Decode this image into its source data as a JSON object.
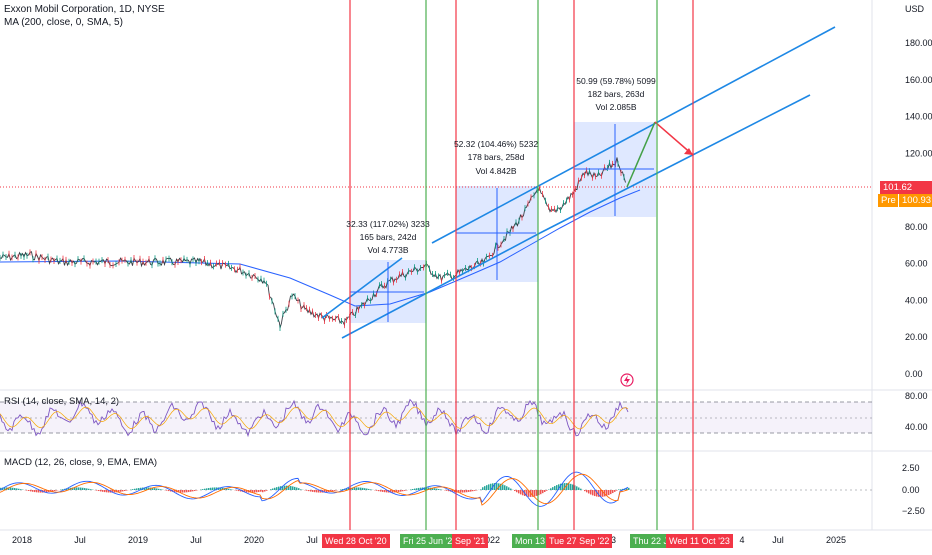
{
  "chart_data": {
    "type": "line",
    "title": "Exxon Mobil Corporation, 1D, NYSE",
    "indicator_ma": "MA (200, close, 0, SMA, 5)",
    "indicator_rsi": "RSI (14, close, SMA, 14, 2)",
    "indicator_macd": "MACD (12, 26, close, 9, EMA, EMA)",
    "currency": "USD",
    "price_axis": {
      "ylim": [
        0,
        190
      ],
      "ticks": [
        "180.00",
        "160.00",
        "140.00",
        "120.00",
        "100.00",
        "80.00",
        "60.00",
        "40.00",
        "20.00",
        "0.00"
      ],
      "tick_values": [
        180,
        160,
        140,
        120,
        100,
        80,
        60,
        40,
        20,
        0
      ]
    },
    "rsi_axis": {
      "ticks": [
        "80.00",
        "40.00"
      ],
      "tick_values": [
        80,
        40
      ]
    },
    "macd_axis": {
      "ticks": [
        "2.50",
        "0.00",
        "−2.50"
      ],
      "tick_values": [
        2.5,
        0,
        -2.5
      ]
    },
    "x_ticks": [
      "2018",
      "Jul",
      "2019",
      "Jul",
      "2020",
      "Jul",
      "2022",
      "Jul",
      "2023",
      "4",
      "Jul",
      "2025"
    ],
    "last_price": "101.62",
    "premarket_label": "Pre",
    "premarket_price": "100.93",
    "measurements": [
      {
        "line1": "32.33 (117.02%) 3233",
        "line2": "165 bars, 242d",
        "line3": "Vol 4.773B"
      },
      {
        "line1": "52.32 (104.46%) 5232",
        "line2": "178 bars, 258d",
        "line3": "Vol 4.842B"
      },
      {
        "line1": "50.99 (59.78%) 5099",
        "line2": "182 bars, 263d",
        "line3": "Vol 2.085B"
      }
    ],
    "date_markers": [
      {
        "label": "Wed 28 Oct '20",
        "color": "red"
      },
      {
        "label": "Fri 25 Jun '21",
        "color": "green"
      },
      {
        "label": "Sep '21",
        "color": "red"
      },
      {
        "label": "Mon 13 J",
        "color": "green"
      },
      {
        "label": "Tue 27 Sep '22",
        "color": "red"
      },
      {
        "label": "Thu 22 J",
        "color": "green"
      },
      {
        "label": "Wed 11 Oct '23",
        "color": "red"
      }
    ],
    "colors": {
      "red": "#f23645",
      "green": "#089981",
      "blue": "#2962ff",
      "channel": "#1e88e5",
      "ma": "#2962ff",
      "price": "#131722"
    }
  }
}
